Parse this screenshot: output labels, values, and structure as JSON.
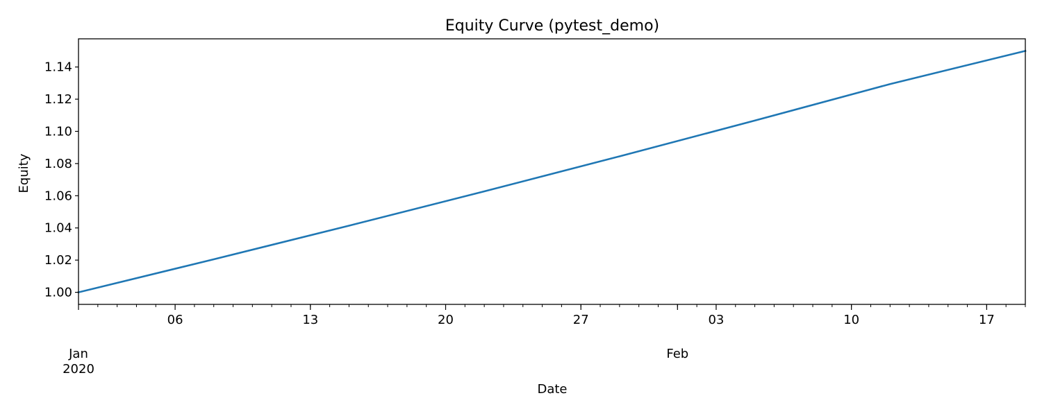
{
  "chart_data": {
    "type": "line",
    "title": "Equity Curve (pytest_demo)",
    "xlabel": "Date",
    "ylabel": "Equity",
    "x_range": [
      "2020-01-01",
      "2020-02-19"
    ],
    "ylim": [
      0.9925,
      1.1575
    ],
    "y_ticks": [
      1.0,
      1.02,
      1.04,
      1.06,
      1.08,
      1.1,
      1.12,
      1.14
    ],
    "y_tick_labels": [
      "1.00",
      "1.02",
      "1.04",
      "1.06",
      "1.08",
      "1.10",
      "1.12",
      "1.14"
    ],
    "x_major_ticks": [
      {
        "date": "2020-01-06",
        "label": "06"
      },
      {
        "date": "2020-01-13",
        "label": "13"
      },
      {
        "date": "2020-01-20",
        "label": "20"
      },
      {
        "date": "2020-01-27",
        "label": "27"
      },
      {
        "date": "2020-02-03",
        "label": "03"
      },
      {
        "date": "2020-02-10",
        "label": "10"
      },
      {
        "date": "2020-02-17",
        "label": "17"
      }
    ],
    "x_period_labels": [
      {
        "date": "2020-01-01",
        "label": "Jan\n2020"
      },
      {
        "date": "2020-02-01",
        "label": "Feb"
      }
    ],
    "grid": false,
    "series": [
      {
        "color": "#1f77b4",
        "x": [
          "2020-01-01",
          "2020-01-08",
          "2020-01-15",
          "2020-01-22",
          "2020-01-29",
          "2020-02-05",
          "2020-02-12",
          "2020-02-19"
        ],
        "y": [
          1.0,
          1.0205,
          1.0414,
          1.0627,
          1.0845,
          1.1067,
          1.1294,
          1.15
        ]
      }
    ]
  }
}
